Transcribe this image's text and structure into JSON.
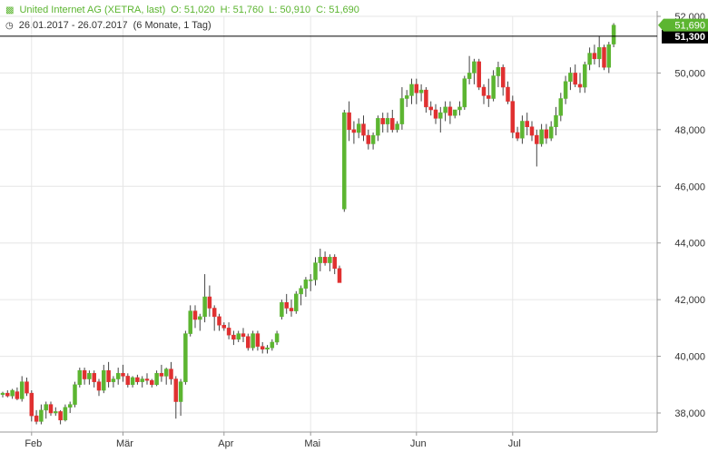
{
  "header": {
    "line1": {
      "name": "United Internet AG (XETRA, last)",
      "open": "O: 51,020",
      "high": "H: 51,760",
      "low": "L: 50,910",
      "close": "C: 51,690"
    },
    "line2": {
      "range": "26.01.2017 - 26.07.2017",
      "period": "(6 Monate, 1 Tag)"
    },
    "icon1": "candlestick-icon",
    "icon2": "clock-icon"
  },
  "colors": {
    "up": "#5cb531",
    "down": "#e03030",
    "grid": "#e6e6e6",
    "wick": "#444444",
    "refline": "#000000"
  },
  "chart_data": {
    "type": "candlestick",
    "x_tick_labels": [
      "Feb",
      "Mär",
      "Apr",
      "Mai",
      "Jun",
      "Jul"
    ],
    "y_tick_labels": [
      "38,000",
      "40,000",
      "42,000",
      "44,000",
      "46,000",
      "48,000",
      "50,000",
      "52,000"
    ],
    "ylim": [
      37.4,
      52.3
    ],
    "grid": true,
    "reference_line": {
      "value": 51.3,
      "label": "51,300"
    },
    "last_value": {
      "value": 51.69,
      "label": "51,690"
    },
    "months": [
      {
        "label": "Feb",
        "index": 6
      },
      {
        "label": "Mär",
        "index": 25
      },
      {
        "label": "Apr",
        "index": 46
      },
      {
        "label": "Mai",
        "index": 64
      },
      {
        "label": "Jun",
        "index": 86
      },
      {
        "label": "Jul",
        "index": 106
      }
    ],
    "ohlc": [
      [
        38.65,
        38.75,
        38.55,
        38.7
      ],
      [
        38.7,
        38.8,
        38.55,
        38.6
      ],
      [
        38.6,
        38.85,
        38.5,
        38.8
      ],
      [
        38.75,
        38.9,
        38.45,
        38.5
      ],
      [
        38.5,
        39.3,
        38.4,
        39.1
      ],
      [
        39.1,
        39.25,
        38.6,
        38.7
      ],
      [
        38.7,
        38.8,
        37.7,
        37.9
      ],
      [
        37.9,
        38.1,
        37.6,
        37.7
      ],
      [
        37.7,
        38.3,
        37.6,
        38.1
      ],
      [
        38.1,
        38.4,
        37.8,
        38.3
      ],
      [
        38.3,
        38.4,
        37.9,
        38.0
      ],
      [
        38.0,
        38.2,
        37.9,
        38.05
      ],
      [
        38.05,
        38.1,
        37.6,
        37.75
      ],
      [
        37.75,
        38.3,
        37.7,
        38.2
      ],
      [
        38.2,
        38.4,
        38.0,
        38.3
      ],
      [
        38.3,
        39.1,
        38.2,
        39.0
      ],
      [
        39.0,
        39.6,
        38.9,
        39.5
      ],
      [
        39.5,
        39.6,
        39.0,
        39.2
      ],
      [
        39.2,
        39.5,
        39.0,
        39.4
      ],
      [
        39.4,
        39.5,
        38.9,
        39.1
      ],
      [
        39.1,
        39.2,
        38.6,
        38.8
      ],
      [
        38.8,
        39.7,
        38.7,
        39.5
      ],
      [
        39.5,
        39.8,
        38.9,
        39.1
      ],
      [
        39.1,
        39.3,
        38.9,
        39.2
      ],
      [
        39.2,
        39.6,
        39.0,
        39.4
      ],
      [
        39.4,
        39.7,
        39.1,
        39.3
      ],
      [
        39.3,
        39.4,
        38.9,
        39.0
      ],
      [
        39.0,
        39.3,
        38.9,
        39.25
      ],
      [
        39.25,
        39.35,
        39.0,
        39.1
      ],
      [
        39.1,
        39.3,
        38.9,
        39.2
      ],
      [
        39.2,
        39.4,
        39.0,
        39.15
      ],
      [
        39.15,
        39.2,
        38.9,
        39.0
      ],
      [
        39.0,
        39.5,
        38.95,
        39.4
      ],
      [
        39.4,
        39.7,
        39.1,
        39.3
      ],
      [
        39.3,
        39.6,
        39.0,
        39.55
      ],
      [
        39.55,
        39.8,
        39.0,
        39.2
      ],
      [
        39.2,
        39.3,
        37.8,
        38.4
      ],
      [
        38.4,
        39.2,
        37.9,
        39.1
      ],
      [
        39.1,
        40.9,
        39.0,
        40.8
      ],
      [
        40.8,
        41.8,
        40.7,
        41.6
      ],
      [
        41.6,
        41.8,
        41.0,
        41.3
      ],
      [
        41.3,
        41.5,
        40.9,
        41.4
      ],
      [
        41.4,
        42.9,
        41.2,
        42.1
      ],
      [
        42.1,
        42.5,
        41.4,
        41.7
      ],
      [
        41.7,
        41.8,
        40.9,
        41.4
      ],
      [
        41.4,
        41.5,
        40.9,
        41.1
      ],
      [
        41.1,
        41.2,
        40.9,
        41.0
      ],
      [
        41.0,
        41.2,
        40.6,
        40.75
      ],
      [
        40.75,
        40.9,
        40.4,
        40.6
      ],
      [
        40.6,
        40.9,
        40.5,
        40.8
      ],
      [
        40.8,
        41.0,
        40.5,
        40.7
      ],
      [
        40.7,
        40.8,
        40.2,
        40.3
      ],
      [
        40.3,
        40.9,
        40.2,
        40.8
      ],
      [
        40.8,
        40.9,
        40.2,
        40.35
      ],
      [
        40.35,
        40.5,
        40.1,
        40.25
      ],
      [
        40.25,
        40.4,
        40.1,
        40.3
      ],
      [
        40.3,
        40.6,
        40.2,
        40.5
      ],
      [
        40.5,
        40.9,
        40.4,
        40.8
      ],
      [
        41.4,
        42.0,
        41.3,
        41.9
      ],
      [
        41.9,
        42.2,
        41.5,
        41.7
      ],
      [
        41.7,
        42.0,
        41.4,
        41.6
      ],
      [
        41.6,
        42.3,
        41.5,
        42.2
      ],
      [
        42.2,
        42.5,
        41.8,
        42.4
      ],
      [
        42.4,
        42.8,
        42.1,
        42.7
      ],
      [
        42.7,
        42.9,
        42.3,
        42.7
      ],
      [
        42.7,
        43.5,
        42.5,
        43.3
      ],
      [
        43.3,
        43.8,
        43.0,
        43.5
      ],
      [
        43.5,
        43.7,
        43.2,
        43.3
      ],
      [
        43.3,
        43.6,
        43.0,
        43.5
      ],
      [
        43.5,
        43.6,
        42.9,
        43.1
      ],
      [
        43.1,
        43.2,
        42.6,
        42.6
      ],
      [
        45.2,
        48.7,
        45.1,
        48.6
      ],
      [
        48.6,
        49.0,
        47.6,
        48.0
      ],
      [
        48.0,
        48.3,
        47.5,
        47.9
      ],
      [
        47.9,
        48.4,
        47.7,
        48.2
      ],
      [
        48.2,
        48.5,
        47.6,
        47.8
      ],
      [
        47.8,
        48.0,
        47.3,
        47.5
      ],
      [
        47.5,
        47.9,
        47.3,
        47.8
      ],
      [
        47.8,
        48.5,
        47.6,
        48.4
      ],
      [
        48.4,
        48.6,
        47.9,
        48.2
      ],
      [
        48.2,
        48.6,
        47.9,
        48.4
      ],
      [
        48.4,
        48.7,
        47.9,
        48.0
      ],
      [
        48.0,
        48.3,
        47.9,
        48.2
      ],
      [
        48.2,
        49.5,
        48.0,
        49.1
      ],
      [
        49.1,
        49.4,
        48.8,
        49.2
      ],
      [
        49.2,
        49.8,
        48.9,
        49.6
      ],
      [
        49.6,
        49.8,
        48.9,
        49.3
      ],
      [
        49.3,
        49.6,
        49.0,
        49.4
      ],
      [
        49.4,
        49.5,
        48.6,
        48.8
      ],
      [
        48.8,
        49.0,
        48.5,
        48.7
      ],
      [
        48.7,
        48.9,
        48.2,
        48.4
      ],
      [
        48.4,
        48.8,
        47.9,
        48.6
      ],
      [
        48.6,
        49.0,
        48.3,
        48.8
      ],
      [
        48.8,
        49.0,
        48.2,
        48.5
      ],
      [
        48.5,
        48.7,
        48.4,
        48.7
      ],
      [
        48.7,
        49.0,
        48.5,
        48.8
      ],
      [
        48.8,
        49.9,
        48.7,
        49.8
      ],
      [
        49.8,
        50.6,
        49.6,
        50.0
      ],
      [
        50.0,
        50.5,
        49.6,
        50.4
      ],
      [
        50.4,
        50.5,
        49.4,
        49.5
      ],
      [
        49.5,
        49.6,
        48.9,
        49.2
      ],
      [
        49.2,
        49.8,
        48.8,
        49.1
      ],
      [
        49.1,
        50.1,
        49.0,
        49.9
      ],
      [
        49.9,
        50.4,
        49.5,
        50.2
      ],
      [
        50.2,
        50.3,
        49.2,
        49.5
      ],
      [
        49.5,
        49.7,
        48.9,
        49.0
      ],
      [
        49.0,
        49.2,
        47.7,
        47.9
      ],
      [
        47.9,
        48.1,
        47.6,
        47.7
      ],
      [
        47.7,
        48.5,
        47.5,
        48.3
      ],
      [
        48.3,
        48.6,
        47.8,
        48.1
      ],
      [
        48.1,
        48.3,
        47.6,
        47.8
      ],
      [
        47.8,
        48.0,
        46.7,
        47.5
      ],
      [
        47.5,
        48.2,
        47.4,
        48.0
      ],
      [
        48.0,
        48.2,
        47.5,
        47.7
      ],
      [
        47.7,
        48.3,
        47.6,
        48.1
      ],
      [
        48.1,
        48.8,
        47.8,
        48.5
      ],
      [
        48.5,
        49.3,
        48.3,
        49.1
      ],
      [
        49.1,
        49.9,
        48.9,
        49.7
      ],
      [
        49.7,
        50.2,
        49.4,
        50.0
      ],
      [
        50.0,
        50.3,
        49.5,
        49.6
      ],
      [
        49.6,
        50.0,
        49.3,
        49.5
      ],
      [
        49.5,
        50.4,
        49.3,
        50.3
      ],
      [
        50.3,
        50.9,
        50.1,
        50.7
      ],
      [
        50.7,
        51.0,
        50.3,
        50.5
      ],
      [
        50.5,
        51.3,
        50.2,
        50.9
      ],
      [
        50.9,
        51.0,
        50.1,
        50.2
      ],
      [
        50.2,
        51.1,
        50.0,
        51.0
      ],
      [
        51.02,
        51.76,
        50.91,
        51.69
      ]
    ]
  }
}
